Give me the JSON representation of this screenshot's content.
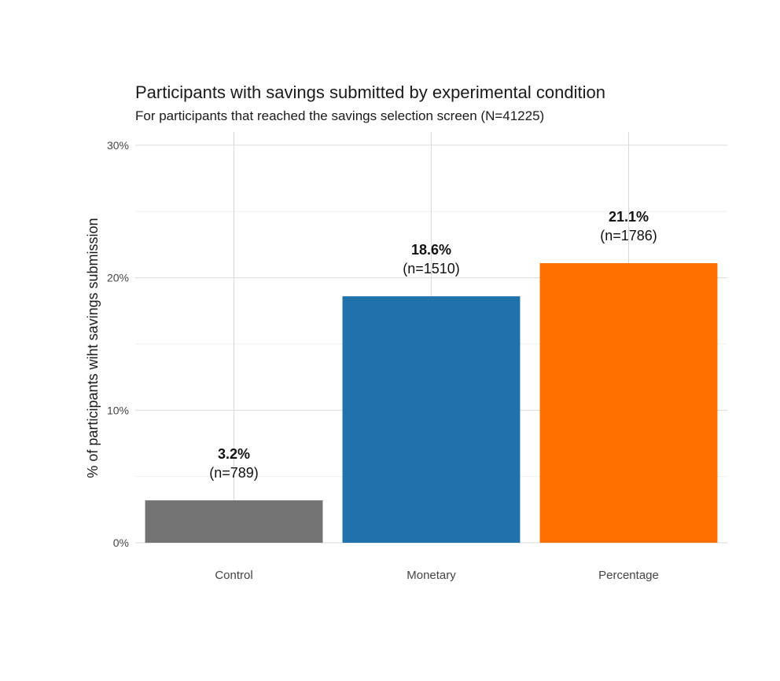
{
  "chart_data": {
    "type": "bar",
    "title": "Participants with savings submitted by experimental condition",
    "subtitle": "For participants that reached the savings selection screen (N=41225)",
    "xlabel": "",
    "ylabel": "% of participants wiht savings submission",
    "ylim": [
      0,
      31
    ],
    "yticks": [
      0,
      10,
      20,
      30
    ],
    "ytick_labels": [
      "0%",
      "10%",
      "20%",
      "30%"
    ],
    "grid": true,
    "categories": [
      "Control",
      "Monetary",
      "Percentage"
    ],
    "values": [
      3.2,
      18.6,
      21.1
    ],
    "value_labels": [
      "3.2%",
      "18.6%",
      "21.1%"
    ],
    "n_labels": [
      "(n=789)",
      "(n=1510)",
      "(n=1786)"
    ],
    "colors": [
      "#737373",
      "#2171aa",
      "#ff7000"
    ]
  },
  "colors": {
    "grid_major": "#d9d9d9",
    "grid_minor": "#efefef",
    "text": "#1a1a1a"
  }
}
